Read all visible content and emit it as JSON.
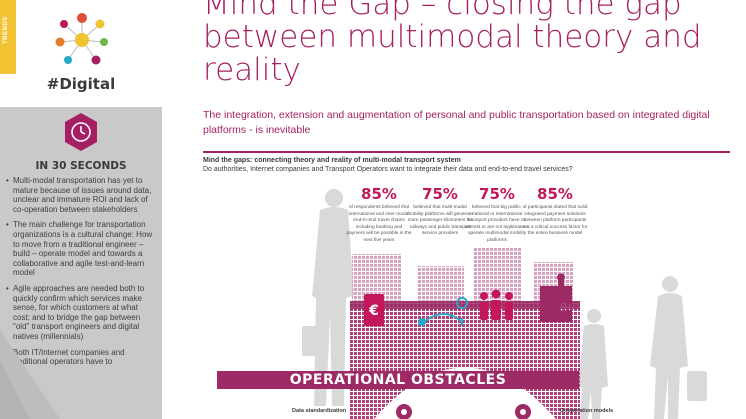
{
  "sidebar": {
    "tab_label": "TRENDS",
    "hashtag": "#Digital",
    "summary_heading": "IN 30 SECONDS",
    "bullets": [
      "Multi-modal transportation has yet to mature because of issues around data, unclear and immature ROI and lack of co-operation between stakeholders",
      "The main challenge for transportation organizations is a cultural change: How to move from a traditional engineer – build – operate model and towards a collaborative and agile test-and-learn model",
      "Agile approaches are needed both to quickly confirm which services make sense, for which customers at what cost; and to bridge the gap between \"old\" transport engineers and digital natives (millennials)",
      "Both IT/Internet companies and traditional operators have to"
    ]
  },
  "header": {
    "title": "Mind the Gap – closing the gap between multimodal theory and reality",
    "subtitle": "The integration, extension and augmentation of personal and public transportation based on integrated digital platforms - is inevitable"
  },
  "infographic": {
    "heading": "Mind the gaps: connecting theory and reality of multi-modal transport system",
    "question": "Do authorities, Internet companies and Transport Operators want to integrate their data and end-to-end travel services?",
    "stats": [
      {
        "value": "85%",
        "text": "of respondents believed that international and inter-modal end-to-end travel chains including booking and payment will be possible in the next five years"
      },
      {
        "value": "75%",
        "text": "believed that multi-modal mobility platforms will generate more passenger kilometers for railways and public transport service providers"
      },
      {
        "value": "75%",
        "text": "believed that big public, national or international transport providers have no interest or are not legitimate to operate multimodal mobility platforms"
      },
      {
        "value": "85%",
        "text": "of participants stated that solid integrated payment solutions between platform participants are a critical success factor for the entire business model"
      }
    ],
    "banner": "OPERATIONAL OBSTACLES",
    "obstacle_left": "Data standardization",
    "obstacle_right": "Cooperation models"
  },
  "colors": {
    "accent": "#a51f62",
    "stat": "#c2185b",
    "banner": "#9c2a64",
    "tab": "#f1c232",
    "sidebar": "#c9c9c9"
  },
  "icons": [
    "network-logo-icon",
    "clock-icon",
    "euro-icon",
    "route-icon",
    "people-icon",
    "puzzle-icon",
    "gear-icon"
  ]
}
